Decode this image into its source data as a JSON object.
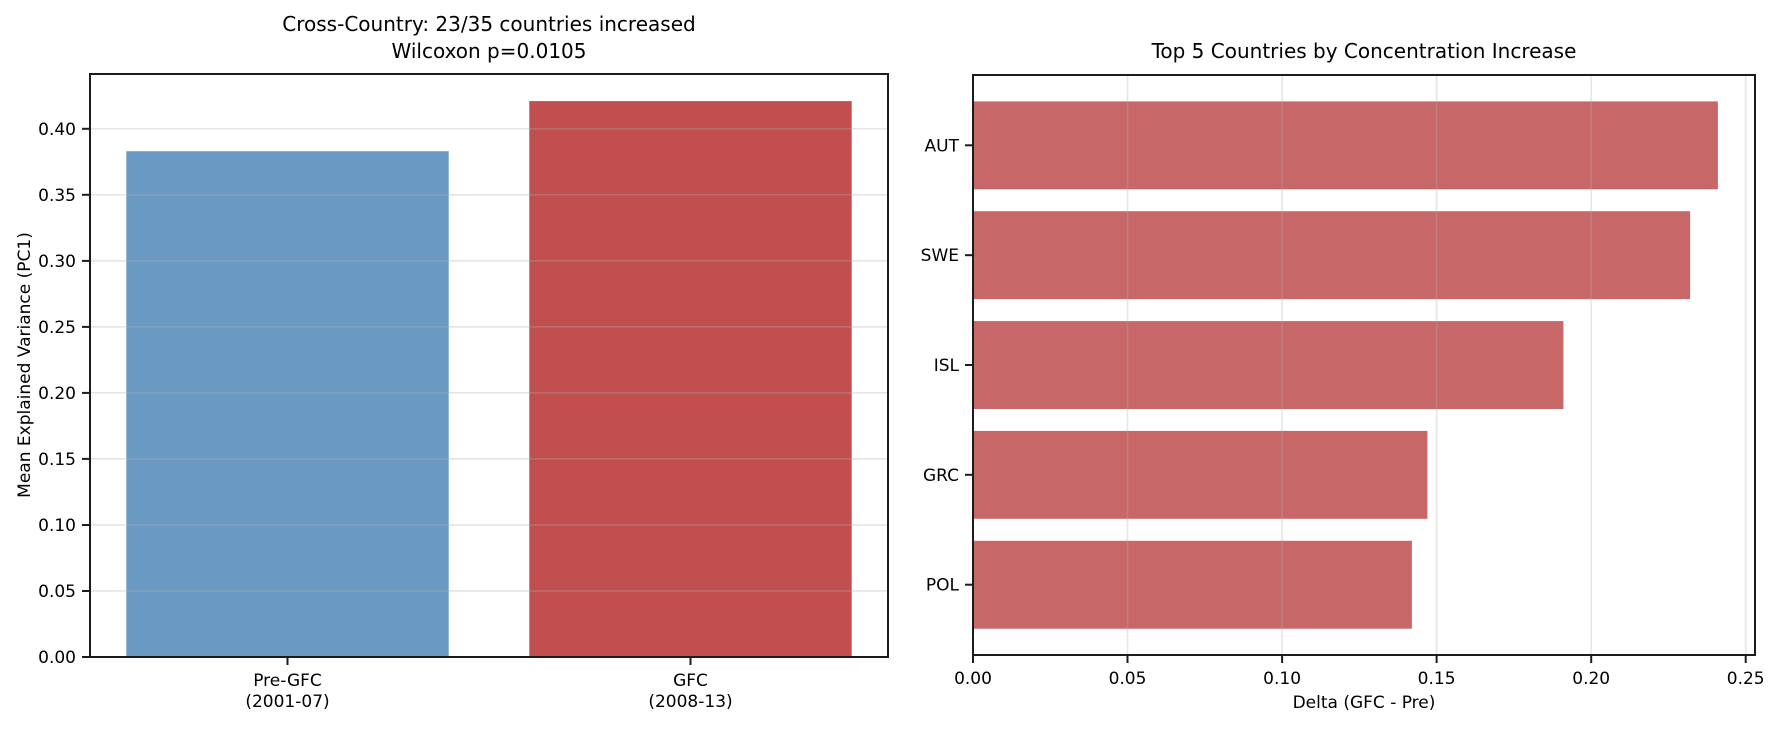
{
  "figure": {
    "background": "#ffffff",
    "grid_color": "#b0b0b0",
    "grid_alpha": 0.3,
    "spine_color": "#1c1c1c",
    "text_color": "#000000"
  },
  "chart_data": [
    {
      "type": "bar",
      "title": "Cross-Country: 23/35 countries increased",
      "subtitle": "Wilcoxon p=0.0105",
      "ylabel": "Mean Explained Variance (PC1)",
      "categories": [
        [
          "Pre-GFC",
          "(2001-07)"
        ],
        [
          "GFC",
          "(2008-13)"
        ]
      ],
      "values": [
        0.383,
        0.421
      ],
      "bar_colors": [
        "#6a9ac4",
        "#c14f4f"
      ],
      "ylim": [
        0,
        0.4415
      ],
      "yticks": [
        0,
        0.05,
        0.1,
        0.15,
        0.2,
        0.25,
        0.3,
        0.35,
        0.4
      ],
      "ytick_labels": [
        "0.00",
        "0.05",
        "0.10",
        "0.15",
        "0.20",
        "0.25",
        "0.30",
        "0.35",
        "0.40"
      ],
      "grid": "horizontal",
      "legend": "none"
    },
    {
      "type": "barh",
      "title": "Top 5 Countries by Concentration Increase",
      "xlabel": "Delta (GFC - Pre)",
      "categories": [
        "AUT",
        "SWE",
        "ISL",
        "GRC",
        "POL"
      ],
      "values": [
        0.241,
        0.232,
        0.191,
        0.147,
        0.142
      ],
      "bar_color": "#c86767",
      "xlim": [
        0,
        0.253
      ],
      "xticks": [
        0,
        0.05,
        0.1,
        0.15,
        0.2,
        0.25
      ],
      "xtick_labels": [
        "0.00",
        "0.05",
        "0.10",
        "0.15",
        "0.20",
        "0.25"
      ],
      "grid": "vertical",
      "legend": "none"
    }
  ]
}
